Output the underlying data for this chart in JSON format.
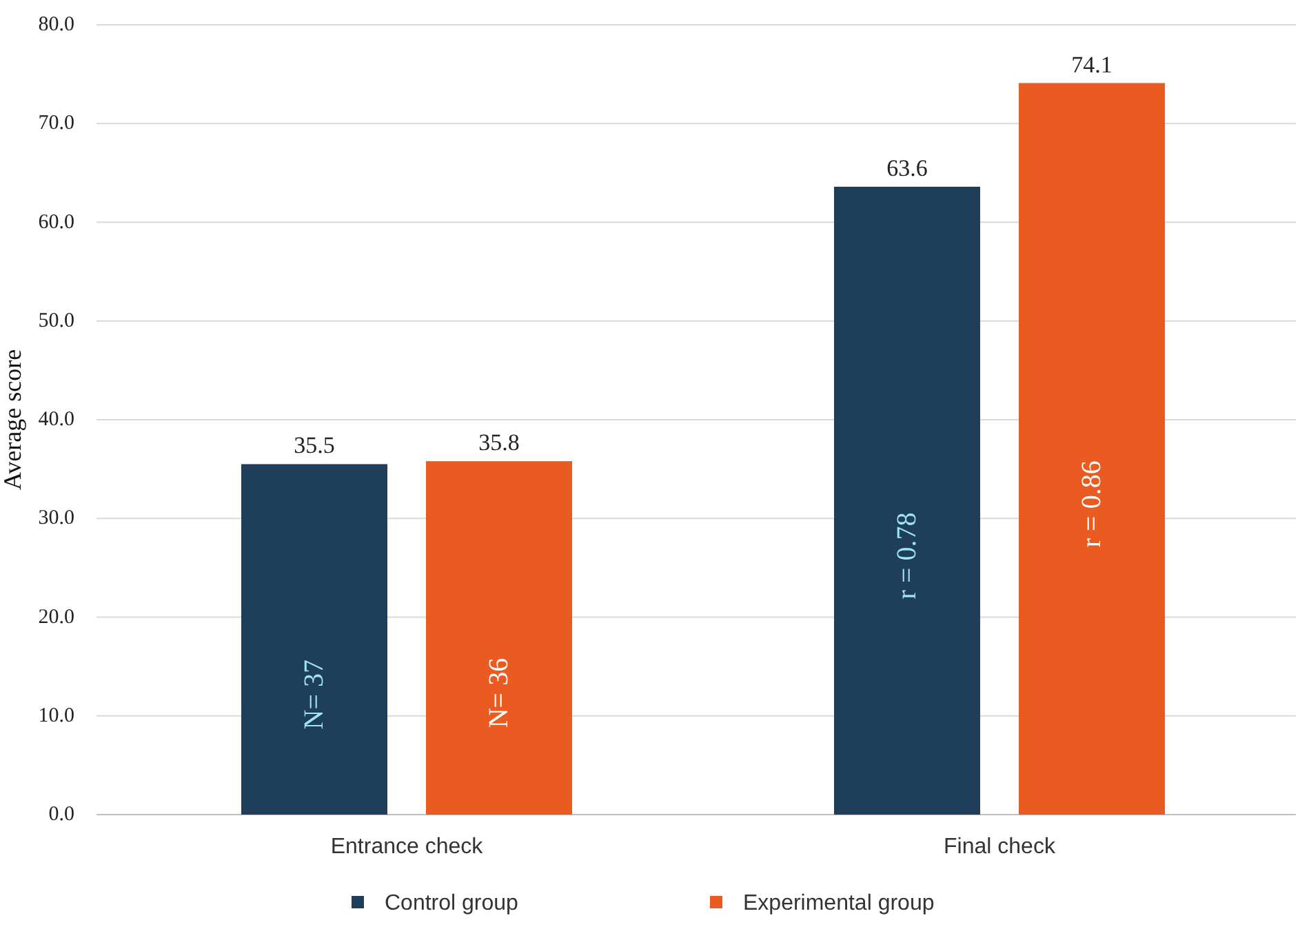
{
  "chart_data": {
    "type": "bar",
    "ylabel": "Average score",
    "categories": [
      "Entrance check",
      "Final check"
    ],
    "series": [
      {
        "name": "Control group",
        "color": "#1f3e5a",
        "values": [
          35.5,
          63.6
        ]
      },
      {
        "name": "Experimental group",
        "color": "#e95b20",
        "values": [
          35.8,
          74.1
        ]
      }
    ],
    "ylim": [
      0,
      80
    ],
    "yticks": [
      {
        "value": 0,
        "label": "0.0"
      },
      {
        "value": 10,
        "label": "10.0"
      },
      {
        "value": 20,
        "label": "20.0"
      },
      {
        "value": 30,
        "label": "30.0"
      },
      {
        "value": 40,
        "label": "40.0"
      },
      {
        "value": 50,
        "label": "50.0"
      },
      {
        "value": 60,
        "label": "60.0"
      },
      {
        "value": 70,
        "label": "70.0"
      },
      {
        "value": 80,
        "label": "80.0"
      }
    ],
    "grid": "y",
    "legend": "bottom",
    "data_labels": true,
    "annotations": [
      "N= 37",
      "N= 36",
      "r = 0.78",
      "r = 0.86"
    ]
  }
}
